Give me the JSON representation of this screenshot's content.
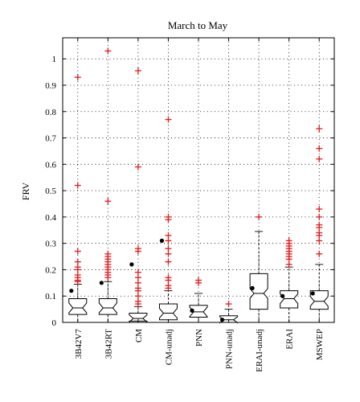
{
  "chart_data": {
    "type": "box",
    "title": "March to May",
    "ylabel": "FRV",
    "xlabel": "",
    "ylim": [
      0,
      1.08
    ],
    "yticks": [
      "0",
      "0.1",
      "0.2",
      "0.3",
      "0.4",
      "0.5",
      "0.6",
      "0.7",
      "0.8",
      "0.9",
      "1"
    ],
    "ytick_values": [
      0,
      0.1,
      0.2,
      0.3,
      0.4,
      0.5,
      0.6,
      0.7,
      0.8,
      0.9,
      1.0
    ],
    "grid": true,
    "notched": true,
    "categories": [
      "3B42V7",
      "3B42RT",
      "CM",
      "CM-unadj",
      "PNN",
      "PNN-unadj",
      "ERAI-unadj",
      "ERAI",
      "MSWEP"
    ],
    "boxes": [
      {
        "q1": 0.03,
        "median": 0.055,
        "q3": 0.09,
        "whisker_low": 0.0,
        "whisker_high": 0.145,
        "mean": 0.12,
        "outliers": [
          0.155,
          0.16,
          0.17,
          0.18,
          0.2,
          0.21,
          0.23,
          0.27,
          0.52,
          0.93
        ]
      },
      {
        "q1": 0.03,
        "median": 0.055,
        "q3": 0.09,
        "whisker_low": 0.0,
        "whisker_high": 0.155,
        "mean": 0.15,
        "outliers": [
          0.17,
          0.18,
          0.19,
          0.2,
          0.21,
          0.22,
          0.23,
          0.24,
          0.25,
          0.26,
          0.46,
          1.03
        ]
      },
      {
        "q1": 0.005,
        "median": 0.015,
        "q3": 0.035,
        "whisker_low": 0.0,
        "whisker_high": 0.06,
        "mean": 0.22,
        "outliers": [
          0.07,
          0.08,
          0.1,
          0.12,
          0.13,
          0.15,
          0.17,
          0.19,
          0.27,
          0.28,
          0.59,
          0.955
        ]
      },
      {
        "q1": 0.01,
        "median": 0.035,
        "q3": 0.07,
        "whisker_low": 0.0,
        "whisker_high": 0.12,
        "mean": 0.31,
        "outliers": [
          0.13,
          0.14,
          0.16,
          0.17,
          0.23,
          0.26,
          0.28,
          0.31,
          0.33,
          0.39,
          0.4,
          0.77
        ]
      },
      {
        "q1": 0.02,
        "median": 0.04,
        "q3": 0.065,
        "whisker_low": 0.0,
        "whisker_high": 0.11,
        "mean": 0.045,
        "outliers": [
          0.15,
          0.16
        ]
      },
      {
        "q1": 0.0,
        "median": 0.01,
        "q3": 0.025,
        "whisker_low": 0.0,
        "whisker_high": 0.05,
        "mean": 0.01,
        "outliers": [
          0.07
        ]
      },
      {
        "q1": 0.05,
        "median": 0.11,
        "q3": 0.185,
        "whisker_low": 0.0,
        "whisker_high": 0.345,
        "mean": 0.13,
        "outliers": [
          0.4
        ]
      },
      {
        "q1": 0.055,
        "median": 0.09,
        "q3": 0.12,
        "whisker_low": 0.0,
        "whisker_high": 0.21,
        "mean": 0.1,
        "outliers": [
          0.22,
          0.24,
          0.25,
          0.26,
          0.27,
          0.28,
          0.29,
          0.3,
          0.31
        ]
      },
      {
        "q1": 0.05,
        "median": 0.08,
        "q3": 0.12,
        "whisker_low": 0.0,
        "whisker_high": 0.22,
        "mean": 0.11,
        "outliers": [
          0.26,
          0.31,
          0.33,
          0.34,
          0.36,
          0.37,
          0.4,
          0.43,
          0.62,
          0.66,
          0.735
        ]
      }
    ],
    "colors": {
      "box": "#000000",
      "outlier": "#e31a1c",
      "grid": "#000000",
      "mean": "#000000"
    }
  }
}
